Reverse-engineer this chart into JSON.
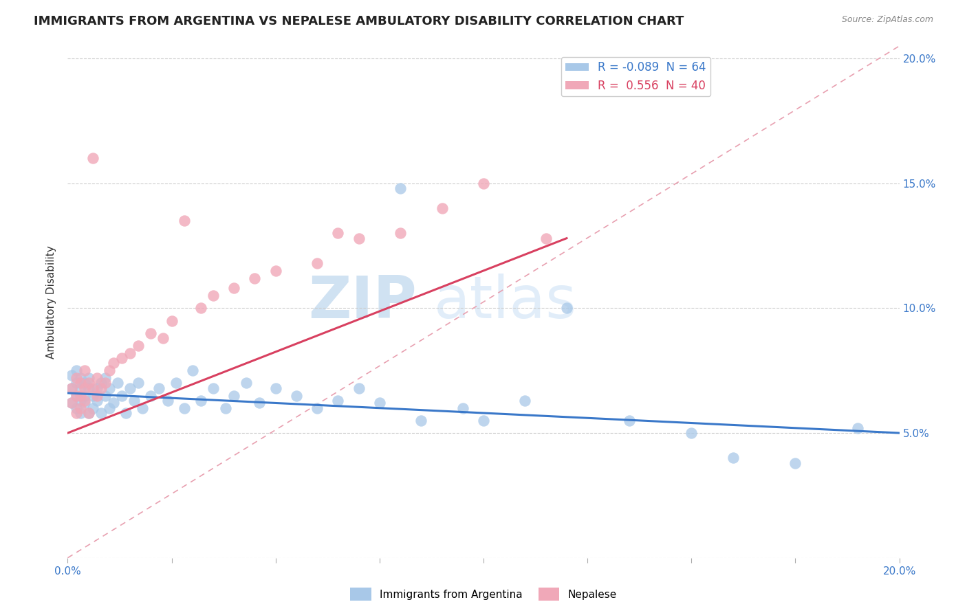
{
  "title": "IMMIGRANTS FROM ARGENTINA VS NEPALESE AMBULATORY DISABILITY CORRELATION CHART",
  "source": "Source: ZipAtlas.com",
  "ylabel": "Ambulatory Disability",
  "watermark_zip": "ZIP",
  "watermark_atlas": "atlas",
  "xlim": [
    0.0,
    0.2
  ],
  "ylim": [
    0.0,
    0.205
  ],
  "grid_color": "#cccccc",
  "blue_color": "#a8c8e8",
  "pink_color": "#f0a8b8",
  "blue_line_color": "#3a78c9",
  "pink_line_color": "#d84060",
  "ref_line_color": "#e8a0b0",
  "R_blue": -0.089,
  "N_blue": 64,
  "R_pink": 0.556,
  "N_pink": 40,
  "legend_label_blue": "Immigrants from Argentina",
  "legend_label_pink": "Nepalese",
  "blue_line_x0": 0.0,
  "blue_line_y0": 0.066,
  "blue_line_x1": 0.2,
  "blue_line_y1": 0.05,
  "pink_line_x0": 0.0,
  "pink_line_y0": 0.05,
  "pink_line_x1": 0.12,
  "pink_line_y1": 0.128,
  "argentina_x": [
    0.001,
    0.001,
    0.001,
    0.002,
    0.002,
    0.002,
    0.002,
    0.003,
    0.003,
    0.003,
    0.003,
    0.004,
    0.004,
    0.004,
    0.005,
    0.005,
    0.005,
    0.006,
    0.006,
    0.007,
    0.007,
    0.008,
    0.008,
    0.009,
    0.009,
    0.01,
    0.01,
    0.011,
    0.012,
    0.013,
    0.014,
    0.015,
    0.016,
    0.017,
    0.018,
    0.02,
    0.022,
    0.024,
    0.026,
    0.028,
    0.03,
    0.032,
    0.035,
    0.038,
    0.04,
    0.043,
    0.046,
    0.05,
    0.055,
    0.06,
    0.065,
    0.07,
    0.075,
    0.08,
    0.085,
    0.095,
    0.1,
    0.11,
    0.12,
    0.135,
    0.15,
    0.16,
    0.175,
    0.19
  ],
  "argentina_y": [
    0.062,
    0.068,
    0.073,
    0.065,
    0.07,
    0.06,
    0.075,
    0.068,
    0.063,
    0.072,
    0.058,
    0.065,
    0.07,
    0.062,
    0.068,
    0.058,
    0.072,
    0.065,
    0.06,
    0.068,
    0.063,
    0.07,
    0.058,
    0.065,
    0.072,
    0.06,
    0.068,
    0.062,
    0.07,
    0.065,
    0.058,
    0.068,
    0.063,
    0.07,
    0.06,
    0.065,
    0.068,
    0.063,
    0.07,
    0.06,
    0.075,
    0.063,
    0.068,
    0.06,
    0.065,
    0.07,
    0.062,
    0.068,
    0.065,
    0.06,
    0.063,
    0.068,
    0.062,
    0.148,
    0.055,
    0.06,
    0.055,
    0.063,
    0.1,
    0.055,
    0.05,
    0.04,
    0.038,
    0.052
  ],
  "nepalese_x": [
    0.001,
    0.001,
    0.002,
    0.002,
    0.002,
    0.003,
    0.003,
    0.003,
    0.004,
    0.004,
    0.004,
    0.005,
    0.005,
    0.006,
    0.006,
    0.007,
    0.007,
    0.008,
    0.009,
    0.01,
    0.011,
    0.013,
    0.015,
    0.017,
    0.02,
    0.023,
    0.025,
    0.028,
    0.032,
    0.035,
    0.04,
    0.045,
    0.05,
    0.06,
    0.065,
    0.07,
    0.08,
    0.09,
    0.1,
    0.115
  ],
  "nepalese_y": [
    0.062,
    0.068,
    0.065,
    0.072,
    0.058,
    0.07,
    0.065,
    0.06,
    0.075,
    0.068,
    0.063,
    0.07,
    0.058,
    0.068,
    0.16,
    0.072,
    0.065,
    0.068,
    0.07,
    0.075,
    0.078,
    0.08,
    0.082,
    0.085,
    0.09,
    0.088,
    0.095,
    0.135,
    0.1,
    0.105,
    0.108,
    0.112,
    0.115,
    0.118,
    0.13,
    0.128,
    0.13,
    0.14,
    0.15,
    0.128
  ]
}
